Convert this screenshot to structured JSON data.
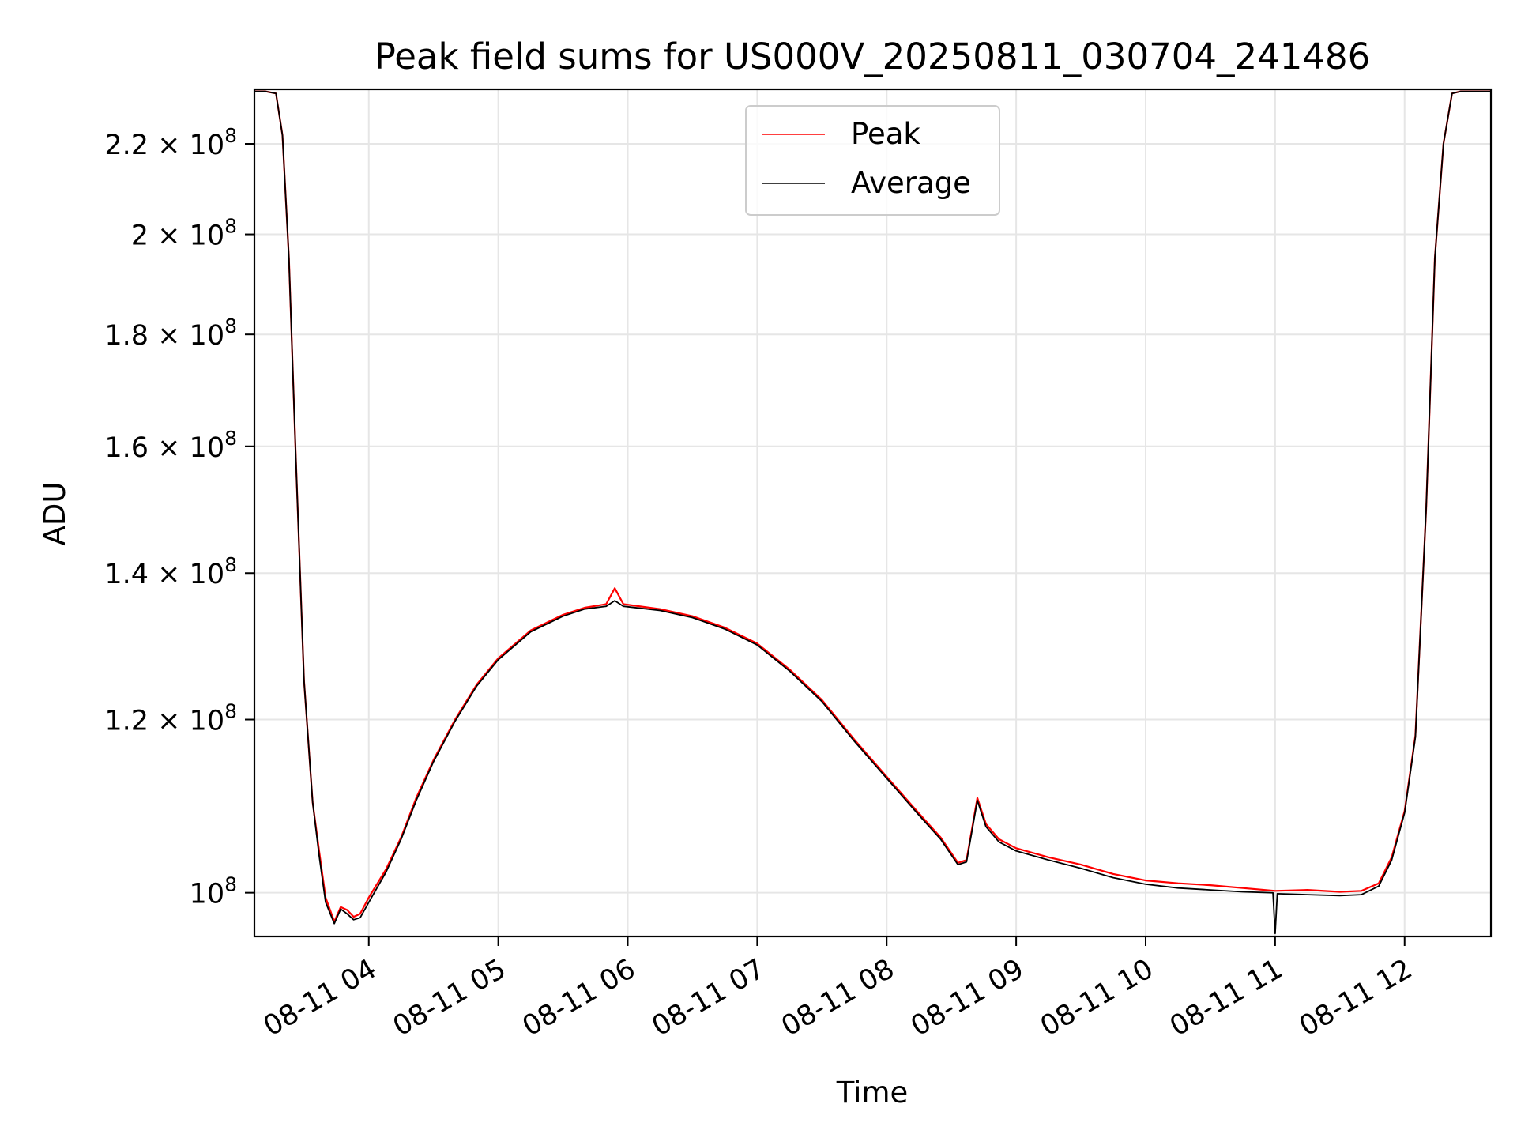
{
  "chart_data": {
    "type": "line",
    "title": "Peak field sums for US000V_20250811_030704_241486",
    "xlabel": "Time",
    "ylabel": "ADU",
    "y_scale": "log",
    "ylim": [
      95500000,
      233000000
    ],
    "xlim": [
      "2025-08-11T03:07",
      "2025-08-11T12:40"
    ],
    "grid": true,
    "legend": "top-center",
    "x_ticks": [
      {
        "t": "2025-08-11T04:00",
        "label": "08-11 04"
      },
      {
        "t": "2025-08-11T05:00",
        "label": "08-11 05"
      },
      {
        "t": "2025-08-11T06:00",
        "label": "08-11 06"
      },
      {
        "t": "2025-08-11T07:00",
        "label": "08-11 07"
      },
      {
        "t": "2025-08-11T08:00",
        "label": "08-11 08"
      },
      {
        "t": "2025-08-11T09:00",
        "label": "08-11 09"
      },
      {
        "t": "2025-08-11T10:00",
        "label": "08-11 10"
      },
      {
        "t": "2025-08-11T11:00",
        "label": "08-11 11"
      },
      {
        "t": "2025-08-11T12:00",
        "label": "08-11 12"
      }
    ],
    "y_ticks": [
      {
        "v": 100000000,
        "mant": "",
        "exp": "8"
      },
      {
        "v": 120000000,
        "mant": "1.2",
        "exp": "8"
      },
      {
        "v": 140000000,
        "mant": "1.4",
        "exp": "8"
      },
      {
        "v": 160000000,
        "mant": "1.6",
        "exp": "8"
      },
      {
        "v": 180000000,
        "mant": "1.8",
        "exp": "8"
      },
      {
        "v": 200000000,
        "mant": "2",
        "exp": "8"
      },
      {
        "v": 220000000,
        "mant": "2.2",
        "exp": "8"
      }
    ],
    "series": [
      {
        "name": "Peak",
        "color": "#ff0000",
        "x": [
          "2025-08-11T03:07",
          "2025-08-11T03:12",
          "2025-08-11T03:17",
          "2025-08-11T03:20",
          "2025-08-11T03:23",
          "2025-08-11T03:26",
          "2025-08-11T03:30",
          "2025-08-11T03:34",
          "2025-08-11T03:37",
          "2025-08-11T03:40",
          "2025-08-11T03:44",
          "2025-08-11T03:47",
          "2025-08-11T03:50",
          "2025-08-11T03:53",
          "2025-08-11T03:56",
          "2025-08-11T04:00",
          "2025-08-11T04:08",
          "2025-08-11T04:15",
          "2025-08-11T04:22",
          "2025-08-11T04:30",
          "2025-08-11T04:40",
          "2025-08-11T04:50",
          "2025-08-11T05:00",
          "2025-08-11T05:15",
          "2025-08-11T05:30",
          "2025-08-11T05:40",
          "2025-08-11T05:50",
          "2025-08-11T05:54",
          "2025-08-11T05:58",
          "2025-08-11T06:15",
          "2025-08-11T06:30",
          "2025-08-11T06:45",
          "2025-08-11T07:00",
          "2025-08-11T07:15",
          "2025-08-11T07:30",
          "2025-08-11T07:45",
          "2025-08-11T08:00",
          "2025-08-11T08:15",
          "2025-08-11T08:25",
          "2025-08-11T08:33",
          "2025-08-11T08:37",
          "2025-08-11T08:42",
          "2025-08-11T08:46",
          "2025-08-11T08:52",
          "2025-08-11T09:00",
          "2025-08-11T09:15",
          "2025-08-11T09:30",
          "2025-08-11T09:45",
          "2025-08-11T10:00",
          "2025-08-11T10:15",
          "2025-08-11T10:30",
          "2025-08-11T10:45",
          "2025-08-11T11:00",
          "2025-08-11T11:15",
          "2025-08-11T11:30",
          "2025-08-11T11:40",
          "2025-08-11T11:48",
          "2025-08-11T11:54",
          "2025-08-11T12:00",
          "2025-08-11T12:05",
          "2025-08-11T12:10",
          "2025-08-11T12:14",
          "2025-08-11T12:18",
          "2025-08-11T12:22",
          "2025-08-11T12:26",
          "2025-08-11T12:30",
          "2025-08-11T12:40"
        ],
        "y": [
          232500000,
          232500000,
          232000000,
          222000000,
          195000000,
          160000000,
          125000000,
          110000000,
          104500000,
          99500000,
          97000000,
          98500000,
          98200000,
          97500000,
          97800000,
          99500000,
          102500000,
          106000000,
          110500000,
          115000000,
          120000000,
          124500000,
          128000000,
          131800000,
          134000000,
          135000000,
          135500000,
          137800000,
          135500000,
          134800000,
          133800000,
          132200000,
          130000000,
          126500000,
          122500000,
          117500000,
          113000000,
          108700000,
          106000000,
          103200000,
          103500000,
          110500000,
          107500000,
          105800000,
          104800000,
          103800000,
          103000000,
          102000000,
          101300000,
          101000000,
          100800000,
          100500000,
          100200000,
          100300000,
          100100000,
          100200000,
          101000000,
          103800000,
          109000000,
          118000000,
          150000000,
          195000000,
          220000000,
          232000000,
          232500000,
          232500000,
          232500000
        ]
      },
      {
        "name": "Average",
        "color": "#000000",
        "x": [
          "2025-08-11T03:07",
          "2025-08-11T03:12",
          "2025-08-11T03:17",
          "2025-08-11T03:20",
          "2025-08-11T03:23",
          "2025-08-11T03:26",
          "2025-08-11T03:30",
          "2025-08-11T03:34",
          "2025-08-11T03:37",
          "2025-08-11T03:40",
          "2025-08-11T03:44",
          "2025-08-11T03:47",
          "2025-08-11T03:50",
          "2025-08-11T03:53",
          "2025-08-11T03:56",
          "2025-08-11T04:00",
          "2025-08-11T04:08",
          "2025-08-11T04:15",
          "2025-08-11T04:22",
          "2025-08-11T04:30",
          "2025-08-11T04:40",
          "2025-08-11T04:50",
          "2025-08-11T05:00",
          "2025-08-11T05:15",
          "2025-08-11T05:30",
          "2025-08-11T05:40",
          "2025-08-11T05:50",
          "2025-08-11T05:54",
          "2025-08-11T05:58",
          "2025-08-11T06:15",
          "2025-08-11T06:30",
          "2025-08-11T06:45",
          "2025-08-11T07:00",
          "2025-08-11T07:15",
          "2025-08-11T07:30",
          "2025-08-11T07:45",
          "2025-08-11T08:00",
          "2025-08-11T08:15",
          "2025-08-11T08:25",
          "2025-08-11T08:33",
          "2025-08-11T08:37",
          "2025-08-11T08:42",
          "2025-08-11T08:46",
          "2025-08-11T08:52",
          "2025-08-11T09:00",
          "2025-08-11T09:15",
          "2025-08-11T09:30",
          "2025-08-11T09:45",
          "2025-08-11T10:00",
          "2025-08-11T10:15",
          "2025-08-11T10:30",
          "2025-08-11T10:45",
          "2025-08-11T10:59",
          "2025-08-11T11:00",
          "2025-08-11T11:01",
          "2025-08-11T11:15",
          "2025-08-11T11:30",
          "2025-08-11T11:40",
          "2025-08-11T11:48",
          "2025-08-11T11:54",
          "2025-08-11T12:00",
          "2025-08-11T12:05",
          "2025-08-11T12:10",
          "2025-08-11T12:14",
          "2025-08-11T12:18",
          "2025-08-11T12:22",
          "2025-08-11T12:26",
          "2025-08-11T12:30",
          "2025-08-11T12:40"
        ],
        "y": [
          232500000,
          232500000,
          232000000,
          222000000,
          195000000,
          160000000,
          125000000,
          110000000,
          104000000,
          99000000,
          96800000,
          98300000,
          97800000,
          97200000,
          97400000,
          99000000,
          102200000,
          105800000,
          110200000,
          114800000,
          119800000,
          124300000,
          127800000,
          131600000,
          133800000,
          134800000,
          135200000,
          136000000,
          135200000,
          134600000,
          133600000,
          132000000,
          129800000,
          126300000,
          122300000,
          117300000,
          112800000,
          108500000,
          105800000,
          103000000,
          103300000,
          110200000,
          107200000,
          105500000,
          104500000,
          103500000,
          102600000,
          101600000,
          100900000,
          100500000,
          100300000,
          100100000,
          100000000,
          95800000,
          99900000,
          99800000,
          99700000,
          99800000,
          100700000,
          103500000,
          108800000,
          117800000,
          150000000,
          195000000,
          220000000,
          232000000,
          232500000,
          232500000,
          232500000
        ]
      }
    ]
  }
}
